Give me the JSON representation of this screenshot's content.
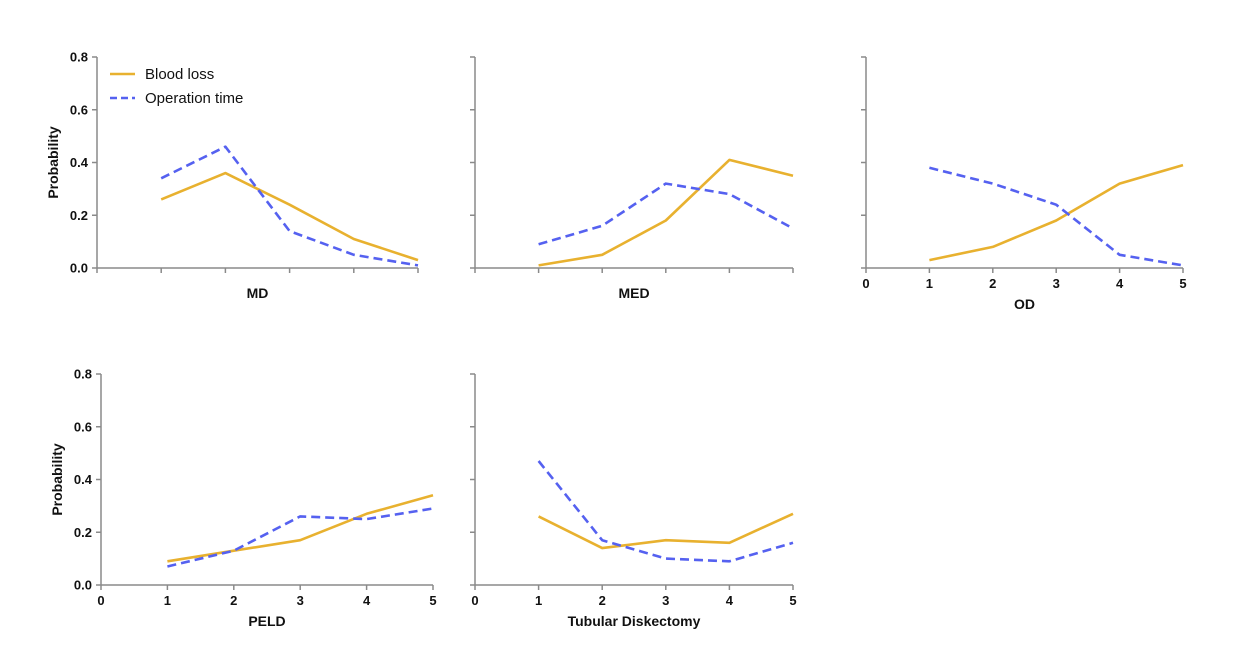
{
  "chart_data": {
    "type": "line",
    "ylabel": "Probability",
    "ylim": [
      0,
      0.8
    ],
    "yticks": [
      "0.0",
      "0.2",
      "0.4",
      "0.6",
      "0.8"
    ],
    "x": [
      1,
      2,
      3,
      4,
      5
    ],
    "xlim": [
      0,
      5
    ],
    "grid": false,
    "legend": {
      "placement": "top-left",
      "entries": [
        {
          "label": "Blood loss",
          "color": "#e8b12f",
          "style": "solid"
        },
        {
          "label": "Operation time",
          "color": "#5561f0",
          "style": "dashed"
        }
      ]
    },
    "panels": [
      {
        "name": "MD",
        "xticks": [],
        "series": [
          {
            "name": "Blood loss",
            "values": [
              0.26,
              0.36,
              0.24,
              0.11,
              0.03
            ]
          },
          {
            "name": "Operation time",
            "values": [
              0.34,
              0.46,
              0.14,
              0.05,
              0.01
            ]
          }
        ]
      },
      {
        "name": "MED",
        "xticks": [],
        "series": [
          {
            "name": "Blood loss",
            "values": [
              0.01,
              0.05,
              0.18,
              0.41,
              0.35
            ]
          },
          {
            "name": "Operation time",
            "values": [
              0.09,
              0.16,
              0.32,
              0.28,
              0.15
            ]
          }
        ]
      },
      {
        "name": "OD",
        "xticks": [
          "0",
          "1",
          "2",
          "3",
          "4",
          "5"
        ],
        "series": [
          {
            "name": "Blood loss",
            "values": [
              0.03,
              0.08,
              0.18,
              0.32,
              0.39
            ]
          },
          {
            "name": "Operation time",
            "values": [
              0.38,
              0.32,
              0.24,
              0.05,
              0.01
            ]
          }
        ]
      },
      {
        "name": "PELD",
        "xticks": [
          "0",
          "1",
          "2",
          "3",
          "4",
          "5"
        ],
        "series": [
          {
            "name": "Blood loss",
            "values": [
              0.09,
              0.13,
              0.17,
              0.27,
              0.34
            ]
          },
          {
            "name": "Operation time",
            "values": [
              0.07,
              0.13,
              0.26,
              0.25,
              0.29
            ]
          }
        ]
      },
      {
        "name": "Tubular Diskectomy",
        "xticks": [
          "0",
          "1",
          "2",
          "3",
          "4",
          "5"
        ],
        "series": [
          {
            "name": "Blood loss",
            "values": [
              0.26,
              0.14,
              0.17,
              0.16,
              0.27
            ]
          },
          {
            "name": "Operation time",
            "values": [
              0.47,
              0.17,
              0.1,
              0.09,
              0.16
            ]
          }
        ]
      }
    ]
  }
}
